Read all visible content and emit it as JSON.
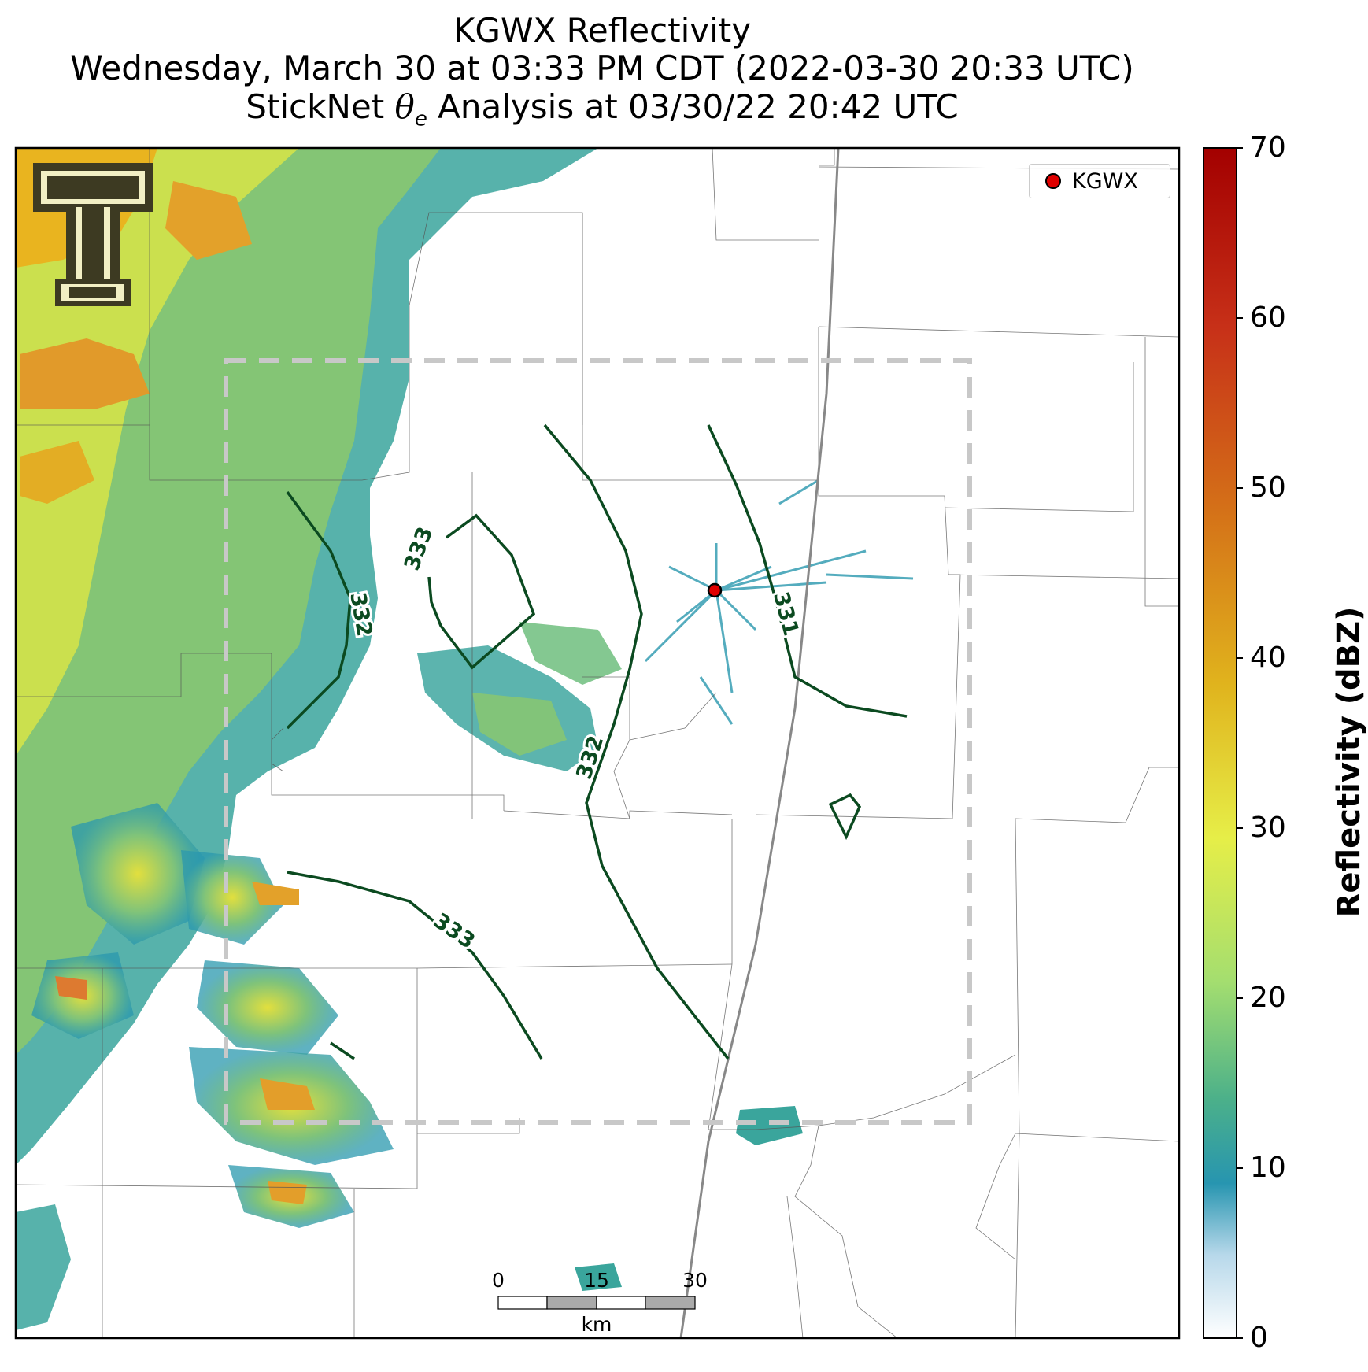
{
  "title": {
    "line1": "KGWX Reflectivity",
    "line2": "Wednesday, March 30 at 03:33 PM CDT (2022-03-30 20:33 UTC)",
    "line3": "StickNet θe Analysis at 03/30/22 20:42 UTC"
  },
  "legend": {
    "label": "KGWX",
    "marker_color": "#e00000"
  },
  "colorbar": {
    "label": "Reflectivity (dBZ)",
    "ticks": [
      "70",
      "60",
      "50",
      "40",
      "30",
      "20",
      "10",
      "0"
    ],
    "range": [
      0,
      70
    ]
  },
  "contours": {
    "color": "#0b4a20",
    "labels": [
      "333",
      "332",
      "331",
      "332",
      "333"
    ]
  },
  "scale_bar": {
    "ticks": [
      "0",
      "15",
      "30"
    ],
    "unit": "km"
  },
  "analysis_box": {
    "style": "dashed",
    "color": "#c8c8c8"
  },
  "logo": {
    "name": "Texas Tech Double T logo"
  }
}
